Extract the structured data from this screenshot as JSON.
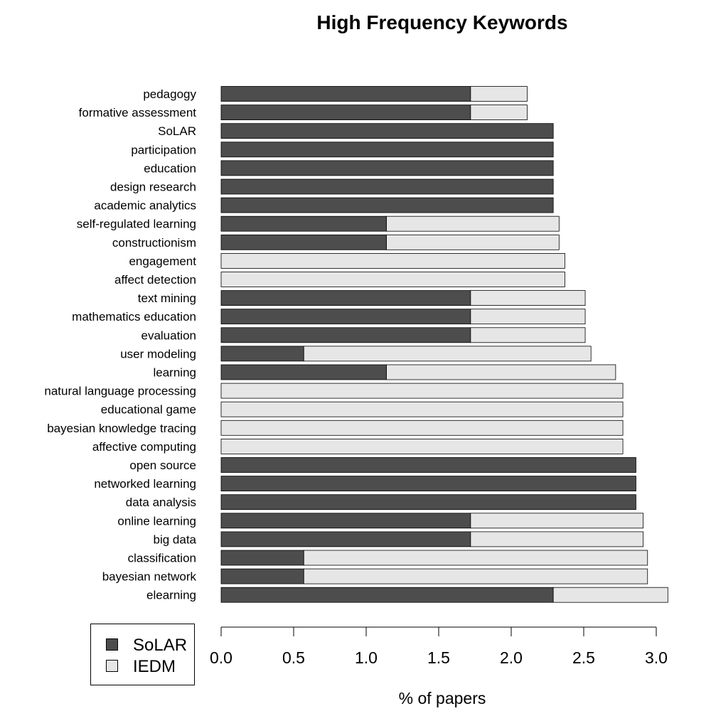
{
  "chart_data": {
    "type": "bar",
    "orientation": "horizontal",
    "stacked": true,
    "title": "High Frequency Keywords",
    "xlabel": "% of papers",
    "ylabel": "",
    "xlim": [
      0,
      3.0
    ],
    "x_ticks": [
      "0.0",
      "0.5",
      "1.0",
      "1.5",
      "2.0",
      "2.5",
      "3.0"
    ],
    "grid": false,
    "legend_position": "bottom-left",
    "categories": [
      "pedagogy",
      "formative assessment",
      "SoLAR",
      "participation",
      "education",
      "design research",
      "academic analytics",
      "self-regulated learning",
      "constructionism",
      "engagement",
      "affect detection",
      "text mining",
      "mathematics education",
      "evaluation",
      "user modeling",
      "learning",
      "natural language processing",
      "educational game",
      "bayesian knowledge tracing",
      "affective computing",
      "open source",
      "networked learning",
      "data analysis",
      "online learning",
      "big data",
      "classification",
      "bayesian network",
      "elearning"
    ],
    "series": [
      {
        "name": "SoLAR",
        "color": "#4d4d4d",
        "values": [
          1.72,
          1.72,
          2.29,
          2.29,
          2.29,
          2.29,
          2.29,
          1.14,
          1.14,
          0,
          0,
          1.72,
          1.72,
          1.72,
          0.57,
          1.14,
          0,
          0,
          0,
          0,
          2.86,
          2.86,
          2.86,
          1.72,
          1.72,
          0.57,
          0.57,
          2.29
        ]
      },
      {
        "name": "IEDM",
        "color": "#e6e6e6",
        "values": [
          0.39,
          0.39,
          0,
          0,
          0,
          0,
          0,
          1.19,
          1.19,
          2.37,
          2.37,
          0.79,
          0.79,
          0.79,
          1.98,
          1.58,
          2.77,
          2.77,
          2.77,
          2.77,
          0,
          0,
          0,
          1.19,
          1.19,
          2.37,
          2.37,
          0.79
        ]
      }
    ]
  }
}
